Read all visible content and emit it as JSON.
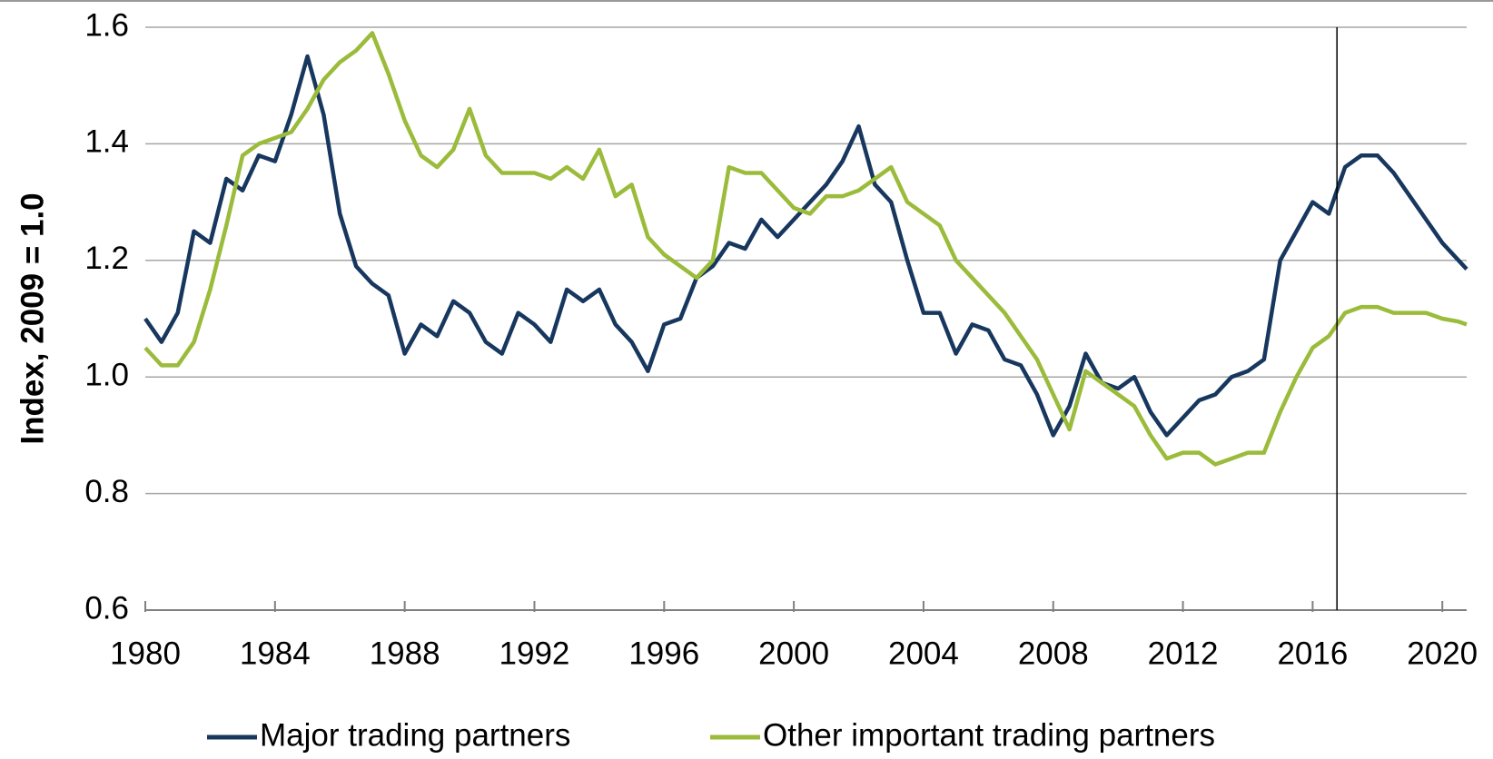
{
  "chart_data": {
    "type": "line",
    "y_label": "Index, 2009 = 1.0",
    "x": [
      1980,
      1980.5,
      1981,
      1981.5,
      1982,
      1982.5,
      1983,
      1983.5,
      1984,
      1984.5,
      1985,
      1985.5,
      1986,
      1986.5,
      1987,
      1987.5,
      1988,
      1988.5,
      1989,
      1989.5,
      1990,
      1990.5,
      1991,
      1991.5,
      1992,
      1992.5,
      1993,
      1993.5,
      1994,
      1994.5,
      1995,
      1995.5,
      1996,
      1996.5,
      1997,
      1997.5,
      1998,
      1998.5,
      1999,
      1999.5,
      2000,
      2000.5,
      2001,
      2001.5,
      2002,
      2002.5,
      2003,
      2003.5,
      2004,
      2004.5,
      2005,
      2005.5,
      2006,
      2006.5,
      2007,
      2007.5,
      2008,
      2008.5,
      2009,
      2009.5,
      2010,
      2010.5,
      2011,
      2011.5,
      2012,
      2012.5,
      2013,
      2013.5,
      2014,
      2014.5,
      2015,
      2015.5,
      2016,
      2016.5,
      2017,
      2017.5,
      2018,
      2018.5,
      2019,
      2019.5,
      2020,
      2020.5,
      2020.75
    ],
    "series": [
      {
        "name": "Major trading partners",
        "color": "#17375e",
        "values": [
          1.1,
          1.06,
          1.11,
          1.25,
          1.23,
          1.34,
          1.32,
          1.38,
          1.37,
          1.45,
          1.55,
          1.45,
          1.28,
          1.19,
          1.16,
          1.14,
          1.04,
          1.09,
          1.07,
          1.13,
          1.11,
          1.06,
          1.04,
          1.11,
          1.09,
          1.06,
          1.15,
          1.13,
          1.15,
          1.09,
          1.06,
          1.01,
          1.09,
          1.1,
          1.17,
          1.19,
          1.23,
          1.22,
          1.27,
          1.24,
          1.27,
          1.3,
          1.33,
          1.37,
          1.43,
          1.33,
          1.3,
          1.2,
          1.11,
          1.11,
          1.04,
          1.09,
          1.08,
          1.03,
          1.02,
          0.97,
          0.9,
          0.95,
          1.04,
          0.99,
          0.98,
          1.0,
          0.94,
          0.9,
          0.93,
          0.96,
          0.97,
          1.0,
          1.01,
          1.03,
          1.2,
          1.25,
          1.3,
          1.28,
          1.36,
          1.38,
          1.38,
          1.35,
          1.31,
          1.27,
          1.23,
          1.2,
          1.185
        ]
      },
      {
        "name": "Other important trading partners",
        "color": "#9bbb3b",
        "values": [
          1.05,
          1.02,
          1.02,
          1.06,
          1.15,
          1.26,
          1.38,
          1.4,
          1.41,
          1.42,
          1.46,
          1.51,
          1.54,
          1.56,
          1.59,
          1.52,
          1.44,
          1.38,
          1.36,
          1.39,
          1.46,
          1.38,
          1.35,
          1.35,
          1.35,
          1.34,
          1.36,
          1.34,
          1.39,
          1.31,
          1.33,
          1.24,
          1.21,
          1.19,
          1.17,
          1.2,
          1.36,
          1.35,
          1.35,
          1.32,
          1.29,
          1.28,
          1.31,
          1.31,
          1.32,
          1.34,
          1.36,
          1.3,
          1.28,
          1.26,
          1.2,
          1.17,
          1.14,
          1.11,
          1.07,
          1.03,
          0.97,
          0.91,
          1.01,
          0.99,
          0.97,
          0.95,
          0.9,
          0.86,
          0.87,
          0.87,
          0.85,
          0.86,
          0.87,
          0.87,
          0.94,
          1.0,
          1.05,
          1.07,
          1.11,
          1.12,
          1.12,
          1.11,
          1.11,
          1.11,
          1.1,
          1.095,
          1.09
        ]
      }
    ],
    "xlim": [
      1980,
      2020.75
    ],
    "xticks": [
      1980,
      1984,
      1988,
      1992,
      1996,
      2000,
      2004,
      2008,
      2012,
      2016,
      2020
    ],
    "ylim": [
      0.6,
      1.6
    ],
    "yticks": [
      {
        "value": 0.6,
        "label": "0.6"
      },
      {
        "value": 0.8,
        "label": "0.8"
      },
      {
        "value": 1.0,
        "label": "1.0"
      },
      {
        "value": 1.2,
        "label": "1.2"
      },
      {
        "value": 1.4,
        "label": "1.4"
      },
      {
        "value": 1.6,
        "label": "1.6"
      }
    ],
    "grid": true,
    "vline": 2016.75,
    "legend": "bottom"
  }
}
